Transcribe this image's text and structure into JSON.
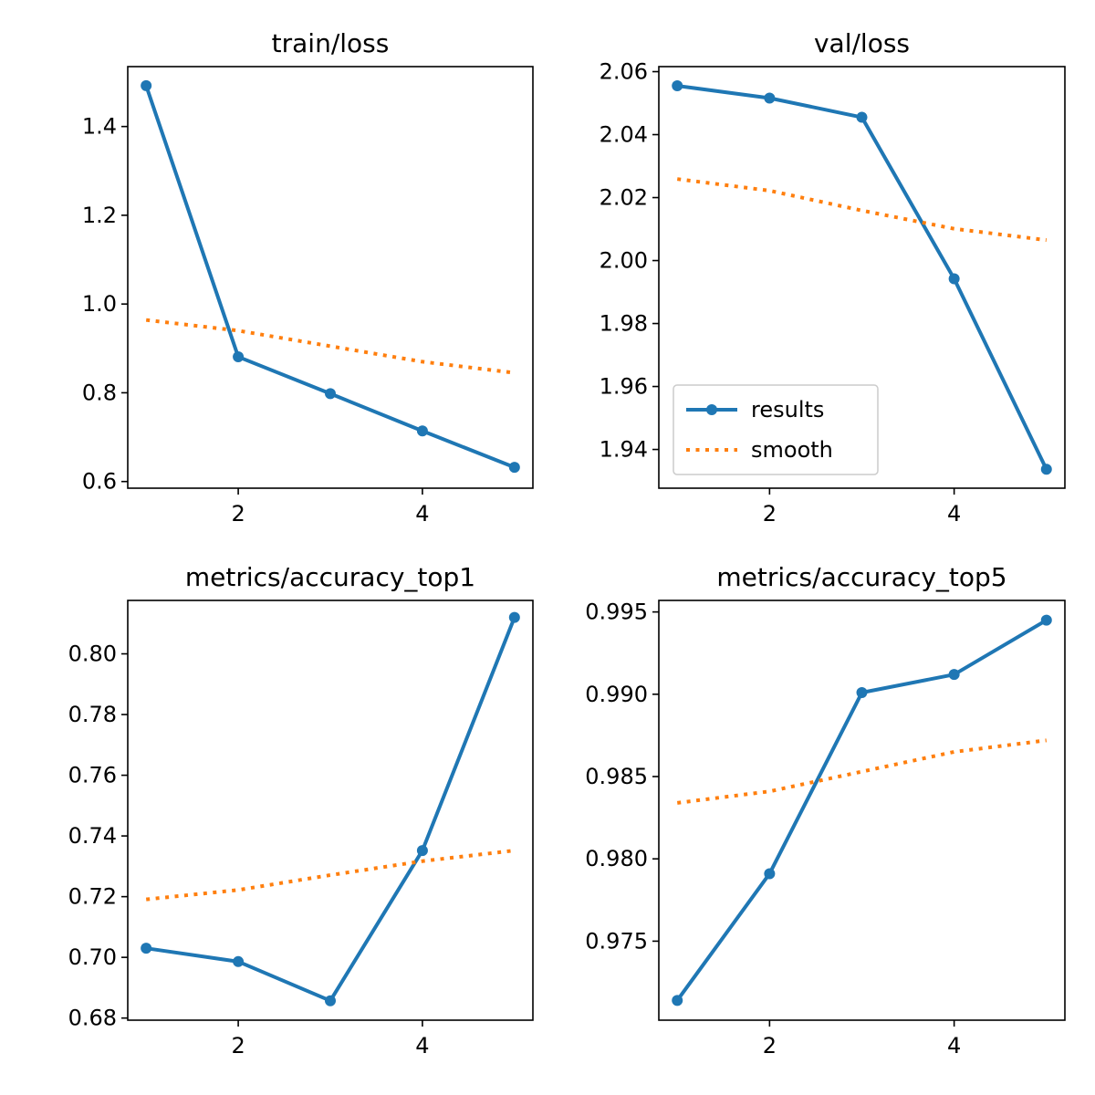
{
  "colors": {
    "results": "#1f77b4",
    "smooth": "#ff7f0e",
    "axes": "#000000",
    "background": "#ffffff"
  },
  "legend": {
    "location": "lower-left",
    "panel": 1,
    "entries": [
      "results",
      "smooth"
    ]
  },
  "chart_data": [
    {
      "type": "line",
      "title": "train/loss",
      "x": [
        1,
        2,
        3,
        4,
        5
      ],
      "xlim": [
        0.8,
        5.2
      ],
      "ylim": [
        0.585,
        1.535
      ],
      "xticks": [
        2,
        4
      ],
      "xtick_labels": [
        "2",
        "4"
      ],
      "yticks": [
        0.6,
        0.8,
        1.0,
        1.2,
        1.4
      ],
      "ytick_labels": [
        "0.6",
        "0.8",
        "1.0",
        "1.2",
        "1.4"
      ],
      "series": [
        {
          "name": "results",
          "style": "line-marker",
          "values": [
            1.492,
            0.881,
            0.798,
            0.714,
            0.632
          ]
        },
        {
          "name": "smooth",
          "style": "dotted",
          "values": [
            0.964,
            0.94,
            0.905,
            0.87,
            0.845
          ]
        }
      ]
    },
    {
      "type": "line",
      "title": "val/loss",
      "x": [
        1,
        2,
        3,
        4,
        5
      ],
      "xlim": [
        0.8,
        5.2
      ],
      "ylim": [
        1.9277,
        2.0616
      ],
      "xticks": [
        2,
        4
      ],
      "xtick_labels": [
        "2",
        "4"
      ],
      "yticks": [
        1.94,
        1.96,
        1.98,
        2.0,
        2.02,
        2.04,
        2.06
      ],
      "ytick_labels": [
        "1.94",
        "1.96",
        "1.98",
        "2.00",
        "2.02",
        "2.04",
        "2.06"
      ],
      "series": [
        {
          "name": "results",
          "style": "line-marker",
          "values": [
            2.0555,
            2.0516,
            2.0455,
            1.9942,
            1.9337
          ]
        },
        {
          "name": "smooth",
          "style": "dotted",
          "values": [
            2.0259,
            2.0222,
            2.0159,
            2.0101,
            2.0065
          ]
        }
      ]
    },
    {
      "type": "line",
      "title": "metrics/accuracy_top1",
      "x": [
        1,
        2,
        3,
        4,
        5
      ],
      "xlim": [
        0.8,
        5.2
      ],
      "ylim": [
        0.6793,
        0.8176
      ],
      "xticks": [
        2,
        4
      ],
      "xtick_labels": [
        "2",
        "4"
      ],
      "yticks": [
        0.68,
        0.7,
        0.72,
        0.74,
        0.76,
        0.78,
        0.8
      ],
      "ytick_labels": [
        "0.68",
        "0.70",
        "0.72",
        "0.74",
        "0.76",
        "0.78",
        "0.80"
      ],
      "series": [
        {
          "name": "results",
          "style": "line-marker",
          "values": [
            0.703,
            0.6986,
            0.6857,
            0.7352,
            0.812
          ]
        },
        {
          "name": "smooth",
          "style": "dotted",
          "values": [
            0.7191,
            0.7222,
            0.7271,
            0.7317,
            0.7352
          ]
        }
      ]
    },
    {
      "type": "line",
      "title": "metrics/accuracy_top5",
      "x": [
        1,
        2,
        3,
        4,
        5
      ],
      "xlim": [
        0.8,
        5.2
      ],
      "ylim": [
        0.9702,
        0.9957
      ],
      "xticks": [
        2,
        4
      ],
      "xtick_labels": [
        "2",
        "4"
      ],
      "yticks": [
        0.975,
        0.98,
        0.985,
        0.99,
        0.995
      ],
      "ytick_labels": [
        "0.975",
        "0.980",
        "0.985",
        "0.990",
        "0.995"
      ],
      "series": [
        {
          "name": "results",
          "style": "line-marker",
          "values": [
            0.9714,
            0.9791,
            0.9901,
            0.9912,
            0.9945
          ]
        },
        {
          "name": "smooth",
          "style": "dotted",
          "values": [
            0.9834,
            0.9841,
            0.9853,
            0.9865,
            0.9872
          ]
        }
      ]
    }
  ]
}
